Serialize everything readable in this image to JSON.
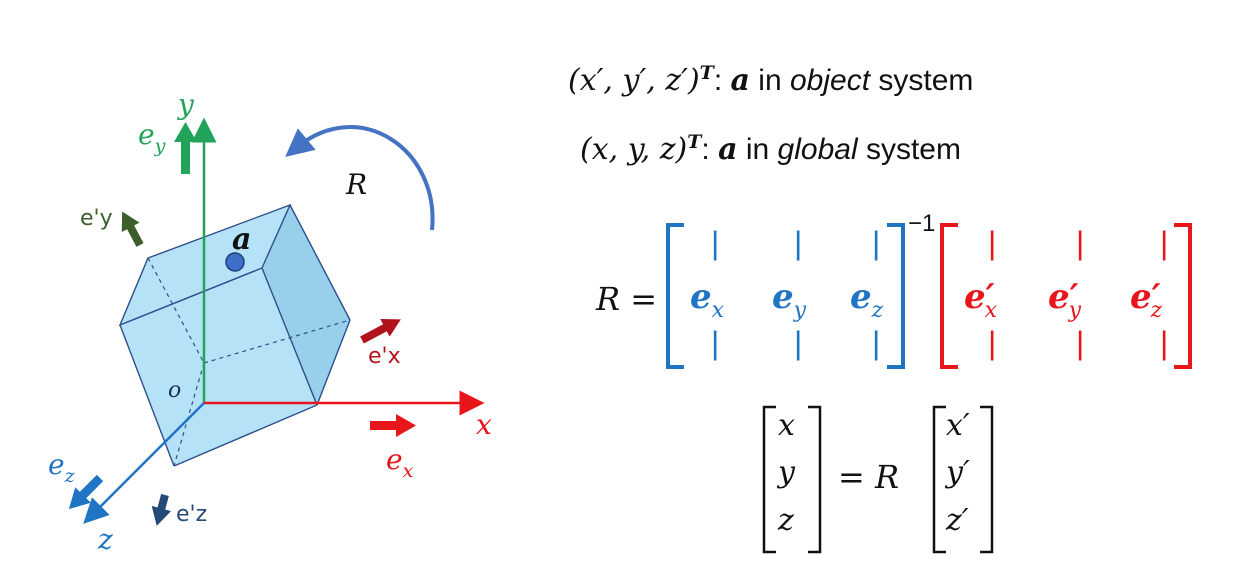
{
  "labels": {
    "axis_y": "y",
    "axis_x": "x",
    "axis_z": "z",
    "origin": "o",
    "point": "a",
    "rotation": "R",
    "ey_base": "e",
    "ey_sub": "y",
    "ex_base": "e",
    "ex_sub": "x",
    "ez_base": "e",
    "ez_sub": "z",
    "eyp": "e'y",
    "exp": "e'x",
    "ezp": "e'z"
  },
  "text": {
    "line1_coords": "(x′, y′, z′)",
    "line1_sup": "T",
    "line1_colon": ": ",
    "line1_a": "a",
    "line1_in": " in ",
    "line1_object": "object",
    "line1_system": " system",
    "line2_coords": "(x,  y,  z)",
    "line2_sup": "T",
    "line2_colon": ": ",
    "line2_a": "a",
    "line2_in": " in ",
    "line2_global": "global",
    "line2_system": " system"
  },
  "eq1": {
    "lhs": "R =",
    "inv": "−1",
    "bar": "|",
    "b1": "e",
    "b1s": "x",
    "b2": "e",
    "b2s": "y",
    "b3": "e",
    "b3s": "z",
    "r1": "e′",
    "r1s": "x",
    "r2": "e′",
    "r2s": "y",
    "r3": "e′",
    "r3s": "z"
  },
  "eq2": {
    "l1": "x",
    "l2": "y",
    "l3": "z",
    "mid": "= R",
    "r1": "x′",
    "r2": "y′",
    "r3": "z′"
  },
  "colors": {
    "green": "#22a35a",
    "dark_green": "#3b5e2b",
    "red": "#e8151b",
    "dark_red": "#b0141a",
    "blue": "#1f74c4",
    "dark_blue": "#264a78",
    "cube_fill": "#a9ddf6",
    "cube_stroke": "#2e4f8a",
    "arc_blue": "#4472c4"
  }
}
